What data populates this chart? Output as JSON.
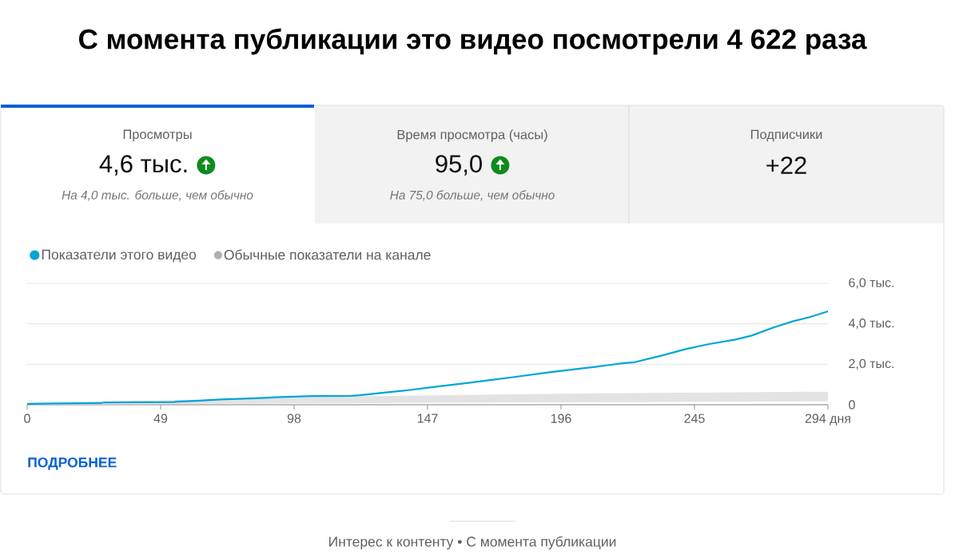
{
  "chart_data": {
    "type": "line",
    "title": "С момента публикации это видео посмотрели 4 622 раза",
    "annotations": [
      "Просмотры",
      "4,6 тыс.",
      "На 4,0 тыс. больше, чем обычно",
      "Время просмотра (часы)",
      "95,0",
      "На 75,0 больше, чем обычно",
      "Подписчики",
      "+22",
      "ПОДРОБНЕЕ",
      "Интерес к контенту • С момента публикации"
    ],
    "series": [
      {
        "name": "Показатели этого видео",
        "color": "#00a5d6",
        "x": [
          0,
          10,
          27,
          28,
          40,
          54,
          55,
          62,
          71,
          84,
          93,
          105,
          119,
          122,
          131,
          140,
          152,
          162,
          170,
          180,
          190,
          199,
          209,
          219,
          223,
          233,
          242,
          250,
          260,
          266,
          274,
          281,
          287,
          294
        ],
        "values": [
          0.04,
          0.06,
          0.08,
          0.11,
          0.12,
          0.13,
          0.15,
          0.19,
          0.26,
          0.32,
          0.38,
          0.43,
          0.44,
          0.47,
          0.6,
          0.72,
          0.92,
          1.08,
          1.22,
          1.39,
          1.57,
          1.72,
          1.88,
          2.06,
          2.1,
          2.43,
          2.76,
          2.99,
          3.22,
          3.42,
          3.82,
          4.12,
          4.32,
          4.62
        ]
      },
      {
        "name": "Обычные показатели на канале",
        "type": "area",
        "color": "#b0b0b0",
        "x": [
          0,
          14,
          28,
          42,
          56,
          70,
          84,
          98,
          126,
          154,
          182,
          210,
          238,
          266,
          294
        ],
        "values": [
          null,
          null,
          null,
          null,
          null,
          null,
          null,
          null,
          null,
          null,
          null,
          null,
          null,
          null,
          null
        ],
        "lower": [
          0,
          0.01,
          0.02,
          0.03,
          0.04,
          0.05,
          0.06,
          0.07,
          0.08,
          0.1,
          0.11,
          0.12,
          0.14,
          0.15,
          0.17
        ],
        "upper": [
          0.02,
          0.08,
          0.14,
          0.2,
          0.24,
          0.28,
          0.32,
          0.36,
          0.42,
          0.47,
          0.52,
          0.56,
          0.59,
          0.62,
          0.64
        ]
      }
    ],
    "xlim": [
      0,
      294
    ],
    "ylim": [
      0,
      6
    ],
    "xticks": [
      0,
      49,
      98,
      147,
      196,
      245,
      {
        "value": 294,
        "label": "294 дня"
      }
    ],
    "yticks": [
      0,
      {
        "value": 2,
        "label": "2,0 тыс."
      },
      {
        "value": 4,
        "label": "4,0 тыс."
      },
      {
        "value": 6,
        "label": "6,0 тыс."
      }
    ],
    "grid": "y",
    "legend": "top left"
  }
}
